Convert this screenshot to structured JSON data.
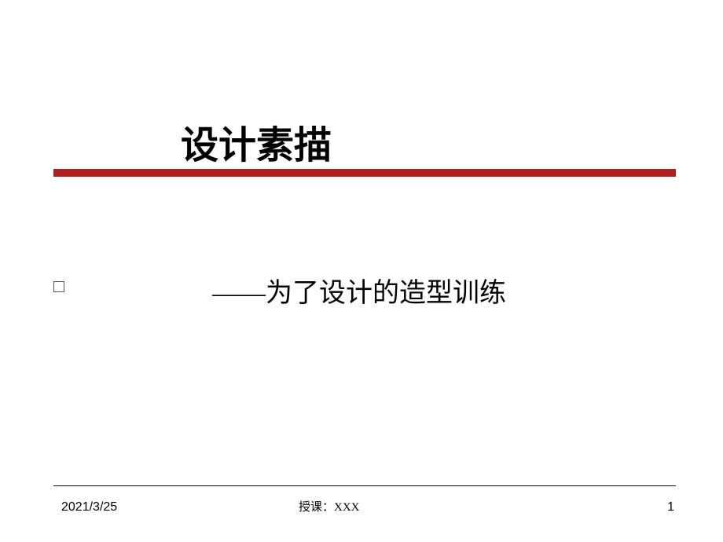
{
  "title": "设计素描",
  "subtitle": "——为了设计的造型训练",
  "footer": {
    "date": "2021/3/25",
    "author": "授课：XXX",
    "page": "1"
  },
  "styling": {
    "divider_color": "#b01e1e",
    "divider_thick_height": 10,
    "title_fontsize": 48,
    "subtitle_fontsize": 34,
    "footer_fontsize": 16,
    "background_color": "#ffffff",
    "text_color": "#000000"
  }
}
